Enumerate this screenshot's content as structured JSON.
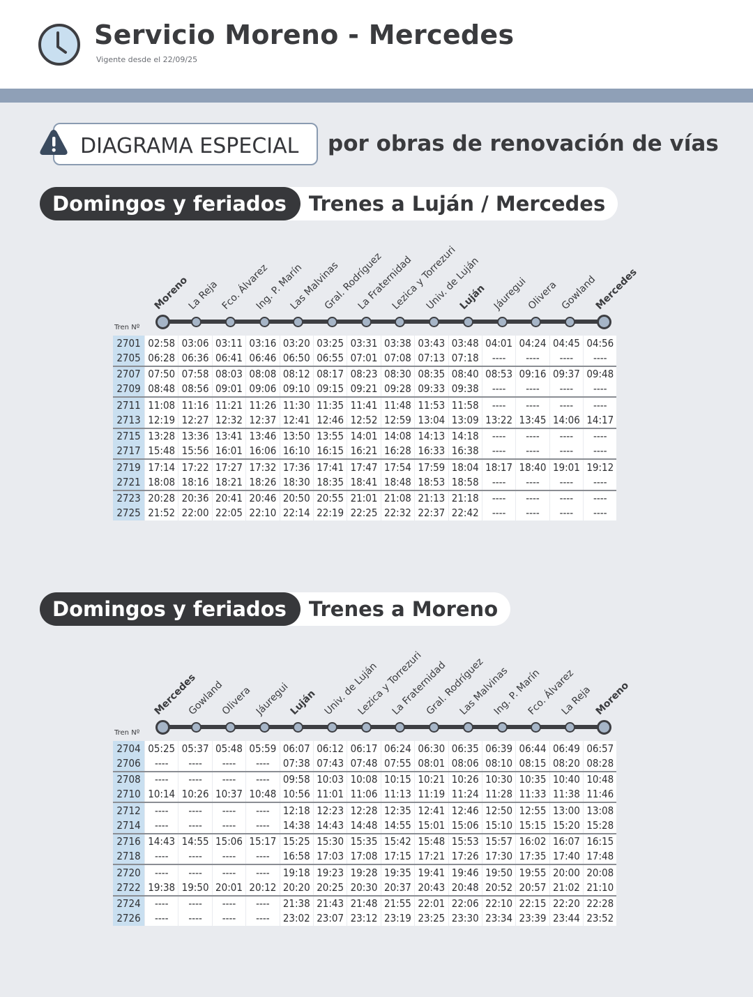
{
  "header": {
    "title": "Servicio Moreno - Mercedes",
    "subtitle": "Vigente desde el 22/09/25"
  },
  "notice": {
    "boxed": "DIAGRAMA ESPECIAL",
    "rest": "por obras de renovación de vías"
  },
  "section1": {
    "day": "Domingos y feriados",
    "direction": "Trenes a Luján / Mercedes",
    "tren_label": "Tren Nº",
    "stations": [
      "Moreno",
      "La Reja",
      "Fco. Álvarez",
      "Ing. P. Marín",
      "Las Malvinas",
      "Gral. Rodríguez",
      "La Fraternidad",
      "Lezica y Torrezuri",
      "Univ. de Luján",
      "Luján",
      "Jáuregui",
      "Olivera",
      "Gowland",
      "Mercedes"
    ],
    "bold_stations": [
      0,
      9,
      13
    ],
    "rows": [
      [
        "2701",
        "02:58",
        "03:06",
        "03:11",
        "03:16",
        "03:20",
        "03:25",
        "03:31",
        "03:38",
        "03:43",
        "03:48",
        "04:01",
        "04:24",
        "04:45",
        "04:56"
      ],
      [
        "2705",
        "06:28",
        "06:36",
        "06:41",
        "06:46",
        "06:50",
        "06:55",
        "07:01",
        "07:08",
        "07:13",
        "07:18",
        "----",
        "----",
        "----",
        "----"
      ],
      [
        "2707",
        "07:50",
        "07:58",
        "08:03",
        "08:08",
        "08:12",
        "08:17",
        "08:23",
        "08:30",
        "08:35",
        "08:40",
        "08:53",
        "09:16",
        "09:37",
        "09:48"
      ],
      [
        "2709",
        "08:48",
        "08:56",
        "09:01",
        "09:06",
        "09:10",
        "09:15",
        "09:21",
        "09:28",
        "09:33",
        "09:38",
        "----",
        "----",
        "----",
        "----"
      ],
      [
        "2711",
        "11:08",
        "11:16",
        "11:21",
        "11:26",
        "11:30",
        "11:35",
        "11:41",
        "11:48",
        "11:53",
        "11:58",
        "----",
        "----",
        "----",
        "----"
      ],
      [
        "2713",
        "12:19",
        "12:27",
        "12:32",
        "12:37",
        "12:41",
        "12:46",
        "12:52",
        "12:59",
        "13:04",
        "13:09",
        "13:22",
        "13:45",
        "14:06",
        "14:17"
      ],
      [
        "2715",
        "13:28",
        "13:36",
        "13:41",
        "13:46",
        "13:50",
        "13:55",
        "14:01",
        "14:08",
        "14:13",
        "14:18",
        "----",
        "----",
        "----",
        "----"
      ],
      [
        "2717",
        "15:48",
        "15:56",
        "16:01",
        "16:06",
        "16:10",
        "16:15",
        "16:21",
        "16:28",
        "16:33",
        "16:38",
        "----",
        "----",
        "----",
        "----"
      ],
      [
        "2719",
        "17:14",
        "17:22",
        "17:27",
        "17:32",
        "17:36",
        "17:41",
        "17:47",
        "17:54",
        "17:59",
        "18:04",
        "18:17",
        "18:40",
        "19:01",
        "19:12"
      ],
      [
        "2721",
        "18:08",
        "18:16",
        "18:21",
        "18:26",
        "18:30",
        "18:35",
        "18:41",
        "18:48",
        "18:53",
        "18:58",
        "----",
        "----",
        "----",
        "----"
      ],
      [
        "2723",
        "20:28",
        "20:36",
        "20:41",
        "20:46",
        "20:50",
        "20:55",
        "21:01",
        "21:08",
        "21:13",
        "21:18",
        "----",
        "----",
        "----",
        "----"
      ],
      [
        "2725",
        "21:52",
        "22:00",
        "22:05",
        "22:10",
        "22:14",
        "22:19",
        "22:25",
        "22:32",
        "22:37",
        "22:42",
        "----",
        "----",
        "----",
        "----"
      ]
    ]
  },
  "section2": {
    "day": "Domingos y feriados",
    "direction": "Trenes a Moreno",
    "tren_label": "Tren Nº",
    "stations": [
      "Mercedes",
      "Gowland",
      "Olivera",
      "Jáuregui",
      "Luján",
      "Univ. de Luján",
      "Lezica y Torrezuri",
      "La Fraternidad",
      "Gral. Rodríguez",
      "Las Malvinas",
      "Ing. P. Marín",
      "Fco. Álvarez",
      "La Reja",
      "Moreno"
    ],
    "bold_stations": [
      0,
      4,
      13
    ],
    "rows": [
      [
        "2704",
        "05:25",
        "05:37",
        "05:48",
        "05:59",
        "06:07",
        "06:12",
        "06:17",
        "06:24",
        "06:30",
        "06:35",
        "06:39",
        "06:44",
        "06:49",
        "06:57"
      ],
      [
        "2706",
        "----",
        "----",
        "----",
        "----",
        "07:38",
        "07:43",
        "07:48",
        "07:55",
        "08:01",
        "08:06",
        "08:10",
        "08:15",
        "08:20",
        "08:28"
      ],
      [
        "2708",
        "----",
        "----",
        "----",
        "----",
        "09:58",
        "10:03",
        "10:08",
        "10:15",
        "10:21",
        "10:26",
        "10:30",
        "10:35",
        "10:40",
        "10:48"
      ],
      [
        "2710",
        "10:14",
        "10:26",
        "10:37",
        "10:48",
        "10:56",
        "11:01",
        "11:06",
        "11:13",
        "11:19",
        "11:24",
        "11:28",
        "11:33",
        "11:38",
        "11:46"
      ],
      [
        "2712",
        "----",
        "----",
        "----",
        "----",
        "12:18",
        "12:23",
        "12:28",
        "12:35",
        "12:41",
        "12:46",
        "12:50",
        "12:55",
        "13:00",
        "13:08"
      ],
      [
        "2714",
        "----",
        "----",
        "----",
        "----",
        "14:38",
        "14:43",
        "14:48",
        "14:55",
        "15:01",
        "15:06",
        "15:10",
        "15:15",
        "15:20",
        "15:28"
      ],
      [
        "2716",
        "14:43",
        "14:55",
        "15:06",
        "15:17",
        "15:25",
        "15:30",
        "15:35",
        "15:42",
        "15:48",
        "15:53",
        "15:57",
        "16:02",
        "16:07",
        "16:15"
      ],
      [
        "2718",
        "----",
        "----",
        "----",
        "----",
        "16:58",
        "17:03",
        "17:08",
        "17:15",
        "17:21",
        "17:26",
        "17:30",
        "17:35",
        "17:40",
        "17:48"
      ],
      [
        "2720",
        "----",
        "----",
        "----",
        "----",
        "19:18",
        "19:23",
        "19:28",
        "19:35",
        "19:41",
        "19:46",
        "19:50",
        "19:55",
        "20:00",
        "20:08"
      ],
      [
        "2722",
        "19:38",
        "19:50",
        "20:01",
        "20:12",
        "20:20",
        "20:25",
        "20:30",
        "20:37",
        "20:43",
        "20:48",
        "20:52",
        "20:57",
        "21:02",
        "21:10"
      ],
      [
        "2724",
        "----",
        "----",
        "----",
        "----",
        "21:38",
        "21:43",
        "21:48",
        "21:55",
        "22:01",
        "22:06",
        "22:10",
        "22:15",
        "22:20",
        "22:28"
      ],
      [
        "2726",
        "----",
        "----",
        "----",
        "----",
        "23:02",
        "23:07",
        "23:12",
        "23:19",
        "23:25",
        "23:30",
        "23:34",
        "23:39",
        "23:44",
        "23:52"
      ]
    ]
  }
}
